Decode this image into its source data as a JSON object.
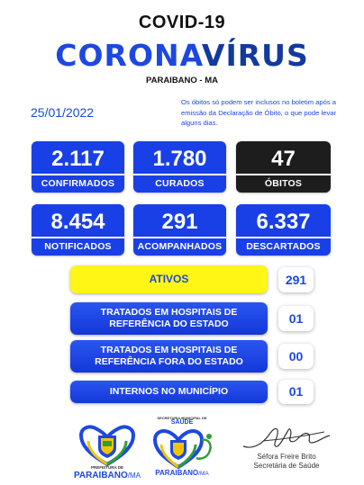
{
  "header": {
    "top_title": "COVID-19",
    "main_title_part1": "CORONA",
    "main_title_part2": "VÍRUS",
    "location": "PARAIBANO - MA"
  },
  "date": "25/01/2022",
  "note": "Os óbitos só podem ser inclusos no boletim após a emissão da Declaração de Óbito, o que pode levar alguns dias.",
  "stats": [
    {
      "value": "2.117",
      "label": "CONFIRMADOS"
    },
    {
      "value": "1.780",
      "label": "CURADOS"
    },
    {
      "value": "47",
      "label": "ÓBITOS"
    },
    {
      "value": "8.454",
      "label": "NOTIFICADOS"
    },
    {
      "value": "291",
      "label": "ACOMPANHADOS"
    },
    {
      "value": "6.337",
      "label": "DESCARTADOS"
    }
  ],
  "details": [
    {
      "label": "ATIVOS",
      "value": "291"
    },
    {
      "label_line1": "TRATADOS EM HOSPITAIS DE",
      "label_line2": "REFERÊNCIA DO ESTADO",
      "value": "01"
    },
    {
      "label_line1": "TRATADOS EM HOSPITAIS DE",
      "label_line2": "REFERÊNCIA FORA DO ESTADO",
      "value": "00"
    },
    {
      "label": "INTERNOS NO MUNICÍPIO",
      "value": "01"
    }
  ],
  "footer": {
    "prefeitura_small": "PREFEITURA DE",
    "prefeitura_name": "PARAIBANO",
    "prefeitura_suffix": "/MA",
    "secretaria_small": "SECRETARIA MUNICIPAL DE",
    "secretaria_title": "SAÚDE",
    "secretaria_name": "PARAIBANO",
    "secretaria_suffix": "/MA",
    "signer_name": "Séfora Freire Brito",
    "signer_role": "Secretária de Saúde"
  },
  "colors": {
    "blue": "#1940e6",
    "dark": "#1d1d1d",
    "yellow": "#fff615",
    "green": "#2f9e3a"
  }
}
